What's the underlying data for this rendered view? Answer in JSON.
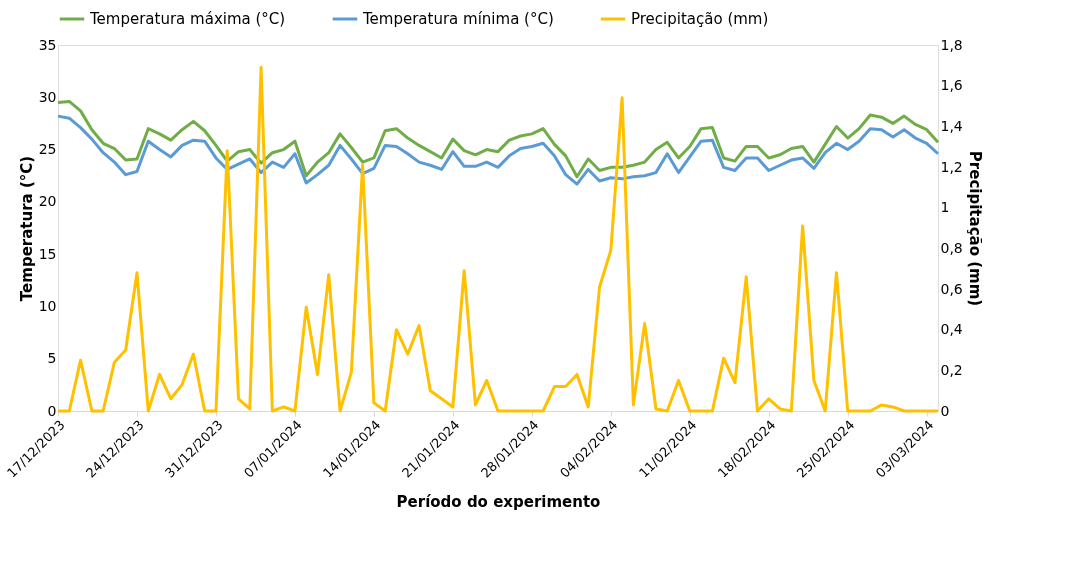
{
  "chart_data": {
    "type": "line",
    "xlabel": "Período do experimento",
    "ylabel": "Temperatura (°C)",
    "y2label": "Precipitação (mm)",
    "legend": "top",
    "grid": false,
    "marker": "none",
    "line_style": "solid",
    "xlim": [
      "2023-12-17",
      "2024-03-04"
    ],
    "xticks": [
      {
        "value": "2023-12-17",
        "label": "17/12/2023"
      },
      {
        "value": "2023-12-24",
        "label": "24/12/2023"
      },
      {
        "value": "2023-12-31",
        "label": "31/12/2023"
      },
      {
        "value": "2024-01-07",
        "label": "07/01/2024"
      },
      {
        "value": "2024-01-14",
        "label": "14/01/2024"
      },
      {
        "value": "2024-01-21",
        "label": "21/01/2024"
      },
      {
        "value": "2024-01-28",
        "label": "28/01/2024"
      },
      {
        "value": "2024-02-04",
        "label": "04/02/2024"
      },
      {
        "value": "2024-02-11",
        "label": "11/02/2024"
      },
      {
        "value": "2024-02-18",
        "label": "18/02/2024"
      },
      {
        "value": "2024-02-25",
        "label": "25/02/2024"
      },
      {
        "value": "2024-03-03",
        "label": "03/03/2024"
      }
    ],
    "ylim": [
      0,
      35
    ],
    "yticks": [
      0,
      5,
      10,
      15,
      20,
      25,
      30,
      35
    ],
    "y2lim": [
      0,
      1.8
    ],
    "y2ticks": [
      {
        "value": 0,
        "label": "0"
      },
      {
        "value": 0.2,
        "label": "0,2"
      },
      {
        "value": 0.4,
        "label": "0,4"
      },
      {
        "value": 0.6,
        "label": "0,6"
      },
      {
        "value": 0.8,
        "label": "0,8"
      },
      {
        "value": 1,
        "label": "1"
      },
      {
        "value": 1.2,
        "label": "1,2"
      },
      {
        "value": 1.4,
        "label": "1,4"
      },
      {
        "value": 1.6,
        "label": "1,6"
      },
      {
        "value": 1.8,
        "label": "1,8"
      }
    ],
    "x": [
      "2023-12-17",
      "2023-12-18",
      "2023-12-19",
      "2023-12-20",
      "2023-12-21",
      "2023-12-22",
      "2023-12-23",
      "2023-12-24",
      "2023-12-25",
      "2023-12-26",
      "2023-12-27",
      "2023-12-28",
      "2023-12-29",
      "2023-12-30",
      "2023-12-31",
      "2024-01-01",
      "2024-01-02",
      "2024-01-03",
      "2024-01-04",
      "2024-01-05",
      "2024-01-06",
      "2024-01-07",
      "2024-01-08",
      "2024-01-09",
      "2024-01-10",
      "2024-01-11",
      "2024-01-12",
      "2024-01-13",
      "2024-01-14",
      "2024-01-15",
      "2024-01-16",
      "2024-01-17",
      "2024-01-18",
      "2024-01-19",
      "2024-01-20",
      "2024-01-21",
      "2024-01-22",
      "2024-01-23",
      "2024-01-24",
      "2024-01-25",
      "2024-01-26",
      "2024-01-27",
      "2024-01-28",
      "2024-01-29",
      "2024-01-30",
      "2024-01-31",
      "2024-02-01",
      "2024-02-02",
      "2024-02-03",
      "2024-02-04",
      "2024-02-05",
      "2024-02-06",
      "2024-02-07",
      "2024-02-08",
      "2024-02-09",
      "2024-02-10",
      "2024-02-11",
      "2024-02-12",
      "2024-02-13",
      "2024-02-14",
      "2024-02-15",
      "2024-02-16",
      "2024-02-17",
      "2024-02-18",
      "2024-02-19",
      "2024-02-20",
      "2024-02-21",
      "2024-02-22",
      "2024-02-23",
      "2024-02-24",
      "2024-02-25",
      "2024-02-26",
      "2024-02-27",
      "2024-02-28",
      "2024-02-29",
      "2024-03-01",
      "2024-03-02",
      "2024-03-03",
      "2024-03-04"
    ],
    "series": [
      {
        "name": "Temperatura máxima (°C)",
        "color": "#70ad47",
        "values": [
          29.5,
          29.6,
          28.7,
          26.9,
          25.6,
          25.1,
          24.0,
          24.1,
          27.0,
          26.5,
          25.9,
          26.9,
          27.7,
          26.8,
          25.4,
          23.9,
          24.8,
          25.0,
          23.7,
          24.7,
          25.0,
          25.8,
          22.5,
          23.8,
          24.7,
          26.5,
          25.2,
          23.8,
          24.2,
          26.8,
          27.0,
          26.1,
          25.4,
          24.8,
          24.2,
          26.0,
          24.9,
          24.5,
          25.0,
          24.8,
          25.9,
          26.3,
          26.5,
          27.0,
          25.5,
          24.4,
          22.4,
          24.1,
          23.0,
          23.3,
          23.3,
          23.5,
          23.8,
          25.0,
          25.7,
          24.2,
          25.3,
          27.0,
          27.1,
          24.2,
          23.9,
          25.3,
          25.3,
          24.2,
          24.5,
          25.1,
          25.3,
          23.8,
          25.5,
          27.2,
          26.1,
          27.0,
          28.3,
          28.1,
          27.5,
          28.2,
          27.4,
          26.9,
          25.7
        ]
      },
      {
        "name": "Temperatura mínima (°C)",
        "color": "#5b9bd5",
        "values": [
          28.2,
          28.0,
          27.1,
          26.0,
          24.7,
          23.8,
          22.6,
          22.9,
          25.8,
          25.0,
          24.3,
          25.4,
          25.9,
          25.8,
          24.2,
          23.1,
          23.6,
          24.1,
          22.8,
          23.8,
          23.3,
          24.6,
          21.8,
          22.6,
          23.5,
          25.4,
          24.1,
          22.7,
          23.2,
          25.4,
          25.3,
          24.6,
          23.8,
          23.5,
          23.1,
          24.8,
          23.4,
          23.4,
          23.8,
          23.3,
          24.4,
          25.1,
          25.3,
          25.6,
          24.4,
          22.6,
          21.7,
          23.1,
          22.0,
          22.3,
          22.2,
          22.4,
          22.5,
          22.8,
          24.6,
          22.8,
          24.3,
          25.8,
          25.9,
          23.3,
          23.0,
          24.2,
          24.2,
          23.0,
          23.5,
          24.0,
          24.2,
          23.2,
          24.7,
          25.6,
          25.0,
          25.8,
          27.0,
          26.9,
          26.2,
          26.9,
          26.1,
          25.6,
          24.6
        ]
      },
      {
        "name": "Precipitação (mm)",
        "color": "#ffc000",
        "axis": "y2",
        "values": [
          0,
          0,
          0.25,
          0,
          0,
          0.24,
          0.3,
          0.68,
          0,
          0.18,
          0.06,
          0.13,
          0.28,
          0,
          0,
          1.28,
          0.06,
          0.01,
          1.69,
          0,
          0.02,
          0,
          0.51,
          0.18,
          0.67,
          0,
          0.19,
          1.21,
          0.04,
          0,
          0.4,
          0.28,
          0.42,
          0.1,
          0.06,
          0.02,
          0.69,
          0.03,
          0.15,
          0,
          0,
          0,
          0,
          0,
          0.12,
          0.12,
          0.18,
          0.02,
          0.61,
          0.79,
          1.54,
          0.03,
          0.43,
          0.01,
          0,
          0.15,
          0,
          0,
          0,
          0.26,
          0.14,
          0.66,
          0,
          0.06,
          0.01,
          0,
          0.91,
          0.15,
          0,
          0.68,
          0,
          0,
          0,
          0.03,
          0.02,
          0,
          0,
          0,
          0
        ]
      }
    ]
  }
}
